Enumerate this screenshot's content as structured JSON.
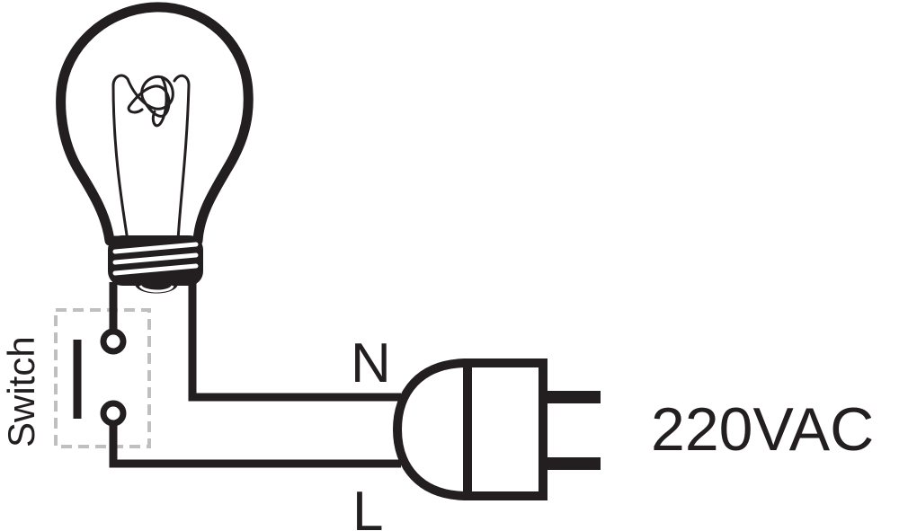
{
  "labels": {
    "neutral": "N",
    "live": "L",
    "voltage": "220VAC",
    "switch": "Switch"
  },
  "colors": {
    "ink": "#231f20",
    "switch_box": "#bfbfbf"
  }
}
